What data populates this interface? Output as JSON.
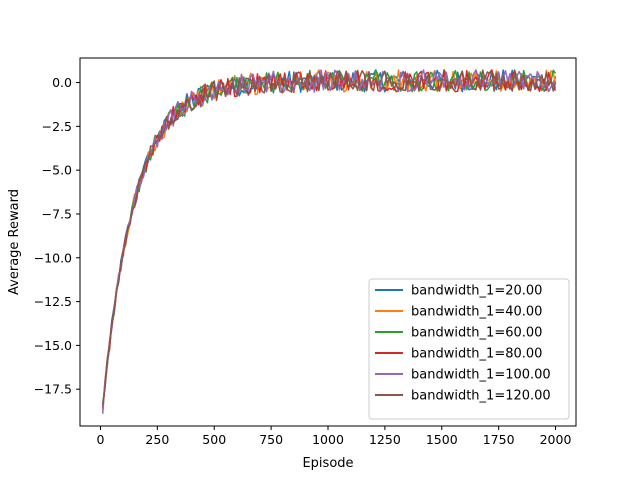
{
  "chart_data": {
    "type": "line",
    "title": "",
    "xlabel": "Episode",
    "ylabel": "Average Reward",
    "xlim": [
      -90,
      2090
    ],
    "ylim": [
      -19.6,
      1.4
    ],
    "xticks": [
      0,
      250,
      500,
      750,
      1000,
      1250,
      1500,
      1750,
      2000
    ],
    "xtick_labels": [
      "0",
      "250",
      "500",
      "750",
      "1000",
      "1250",
      "1500",
      "1750",
      "2000"
    ],
    "yticks": [
      -17.5,
      -15.0,
      -12.5,
      -10.0,
      -7.5,
      -5.0,
      -2.5,
      0.0
    ],
    "ytick_labels": [
      "−17.5",
      "−15.0",
      "−12.5",
      "−10.0",
      "−7.5",
      "−5.0",
      "−2.5",
      "0.0"
    ],
    "grid": false,
    "legend_position": "lower-right",
    "x_start": 10,
    "x_step": 10,
    "x_end": 2000,
    "series": [
      {
        "name": "bandwidth_1=20.00",
        "color": "#1f77b4",
        "start": -18.5
      },
      {
        "name": "bandwidth_1=40.00",
        "color": "#ff7f0e",
        "start": -18.7
      },
      {
        "name": "bandwidth_1=60.00",
        "color": "#2ca02c",
        "start": -18.3
      },
      {
        "name": "bandwidth_1=80.00",
        "color": "#d62728",
        "start": -18.6
      },
      {
        "name": "bandwidth_1=100.00",
        "color": "#9467bd",
        "start": -18.9
      },
      {
        "name": "bandwidth_1=120.00",
        "color": "#8c564b",
        "start": -18.4
      }
    ],
    "trend": {
      "plateau": 0.1,
      "amplitude": 18.6,
      "time_constant": 140,
      "noise": 0.45
    }
  }
}
